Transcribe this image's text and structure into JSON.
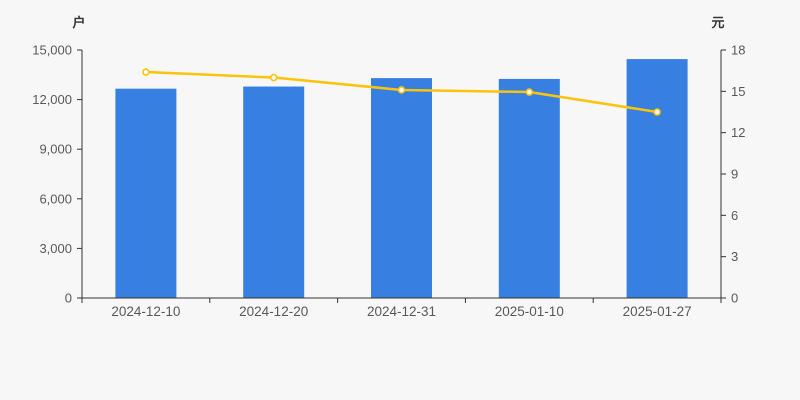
{
  "chart_data": {
    "type": "combo",
    "title": "",
    "categories": [
      "2024-12-10",
      "2024-12-20",
      "2024-12-31",
      "2025-01-10",
      "2025-01-27"
    ],
    "series": [
      {
        "id": "holder-count-bars",
        "type": "bar",
        "y_axis": "left",
        "values": [
          12660,
          12790,
          13300,
          13250,
          14450
        ],
        "color": "#3780e1"
      },
      {
        "id": "per-holder-value-line",
        "type": "line",
        "y_axis": "right",
        "values": [
          16.4,
          16.0,
          15.1,
          14.95,
          13.5
        ],
        "color": "#fcc30b",
        "marker_fill": "#ffffff",
        "marker_stroke": "#fcc30b"
      }
    ],
    "left_axis": {
      "name": "户",
      "min": 0,
      "max": 15000,
      "tick_values": [
        0,
        3000,
        6000,
        9000,
        12000,
        15000
      ],
      "tick_labels": [
        "0",
        "3,000",
        "6,000",
        "9,000",
        "12,000",
        "15,000"
      ]
    },
    "right_axis": {
      "name": "元",
      "min": 0,
      "max": 18,
      "tick_values": [
        0,
        3,
        6,
        9,
        12,
        15,
        18
      ],
      "tick_labels": [
        "0",
        "3",
        "6",
        "9",
        "12",
        "15",
        "18"
      ]
    },
    "grid": false,
    "legend": false,
    "colors": {
      "background": "#f7f7f7",
      "axis_line": "#333333",
      "tick_label": "#595959",
      "category_label": "#595959"
    }
  }
}
